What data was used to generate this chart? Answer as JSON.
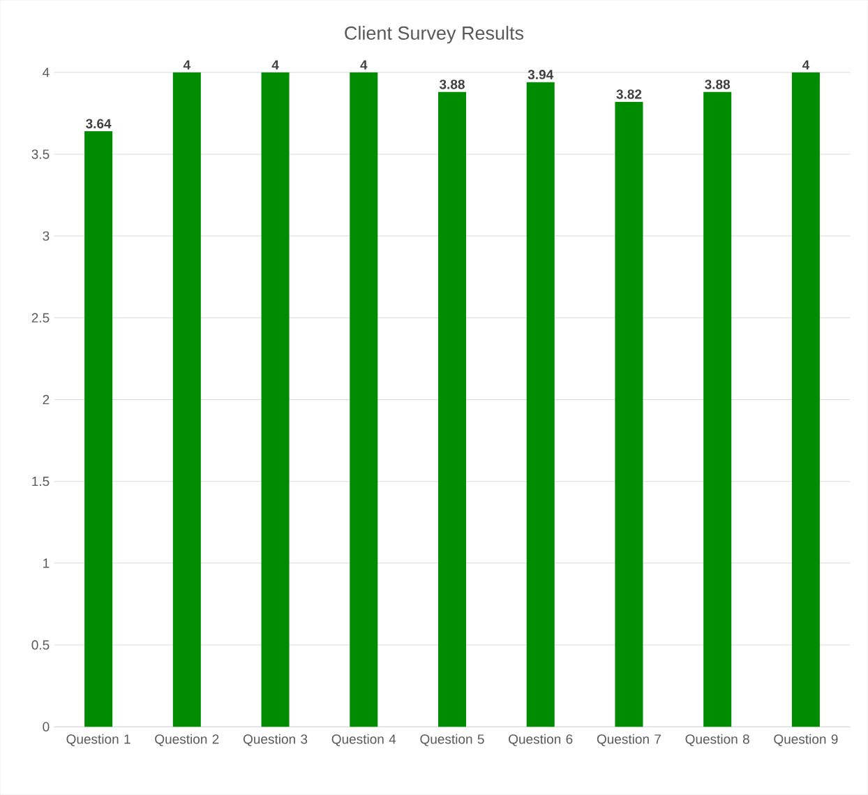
{
  "chart_data": {
    "type": "bar",
    "title": "Client Survey Results",
    "categories": [
      "Question 1",
      "Question 2",
      "Question 3",
      "Question 4",
      "Question 5",
      "Question 6",
      "Question 7",
      "Question 8",
      "Question 9"
    ],
    "values": [
      3.64,
      4,
      4,
      4,
      3.88,
      3.94,
      3.82,
      3.88,
      4
    ],
    "color": "#008c00",
    "ylim": [
      0,
      4
    ],
    "yticks": [
      0,
      0.5,
      1,
      1.5,
      2,
      2.5,
      3,
      3.5,
      4
    ],
    "grid": "y",
    "data_labels": true
  }
}
